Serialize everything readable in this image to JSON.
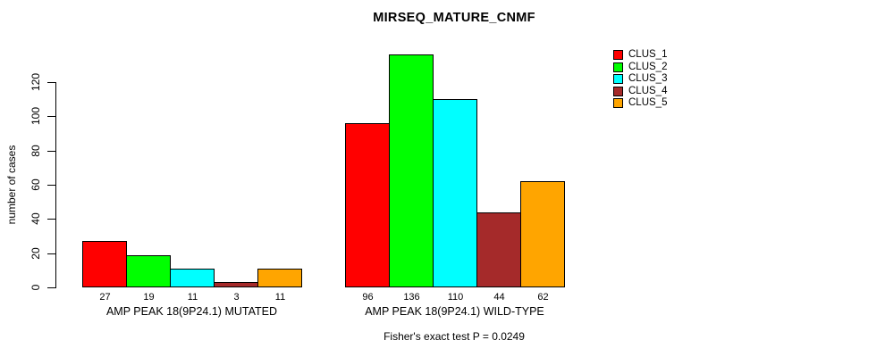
{
  "chart_data": {
    "type": "bar",
    "title": "MIRSEQ_MATURE_CNMF",
    "ylabel": "number of cases",
    "xlabel": "",
    "ylim": [
      0,
      136
    ],
    "yticks": [
      0,
      20,
      40,
      60,
      80,
      100,
      120
    ],
    "grid": false,
    "legend_position": "top-right",
    "categories": [
      "AMP PEAK 18(9P24.1) MUTATED",
      "AMP PEAK 18(9P24.1) WILD-TYPE"
    ],
    "series": [
      {
        "name": "CLUS_1",
        "color": "#FF0000",
        "values": [
          27,
          96
        ]
      },
      {
        "name": "CLUS_2",
        "color": "#00FF00",
        "values": [
          19,
          136
        ]
      },
      {
        "name": "CLUS_3",
        "color": "#00FFFF",
        "values": [
          11,
          110
        ]
      },
      {
        "name": "CLUS_4",
        "color": "#A52A2A",
        "values": [
          3,
          44
        ]
      },
      {
        "name": "CLUS_5",
        "color": "#FFA500",
        "values": [
          11,
          62
        ]
      }
    ],
    "bar_value_labels_shown": true,
    "footnote": "Fisher's exact test P = 0.0249",
    "bar_border_color": "#000000",
    "axis_color": "#000000",
    "background_color": "#FFFFFF"
  }
}
